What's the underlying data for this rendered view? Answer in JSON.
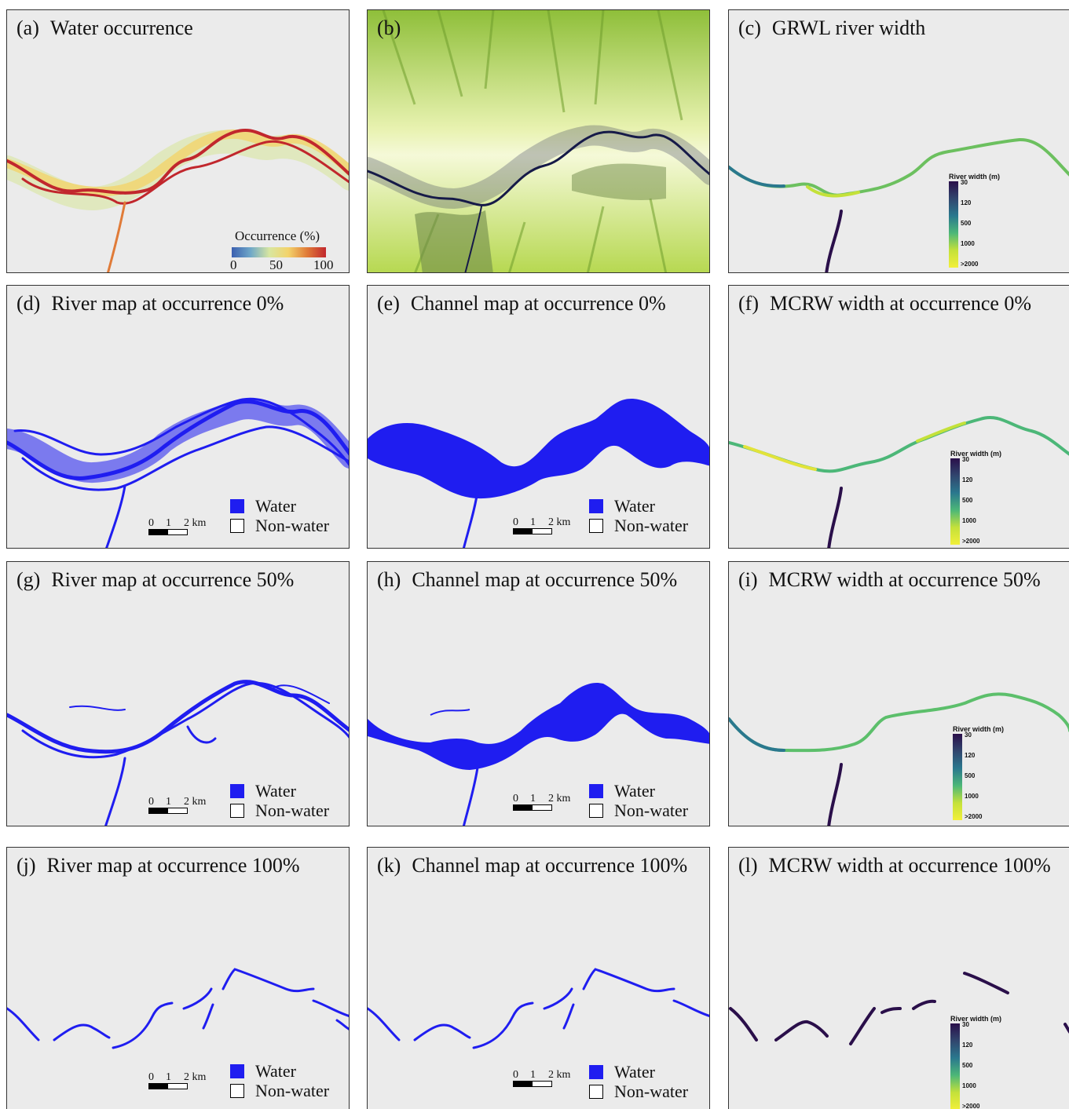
{
  "colors": {
    "panel_bg": "#ebebeb",
    "water_blue": "#1f1df0",
    "occurrence_high": "#c1272d",
    "width_low": "#2a0f4a",
    "width_high": "#f2ef3a"
  },
  "legend": {
    "water": "Water",
    "non_water": "Non-water"
  },
  "scale_bar": {
    "t0": "0",
    "t1": "1",
    "t2": "2 km"
  },
  "width_legend": {
    "title": "River width (m)",
    "ticks": [
      "30",
      "120",
      "500",
      "1000",
      ">2000"
    ]
  },
  "occurrence_legend": {
    "title": "Occurrence (%)",
    "ticks": [
      "0",
      "50",
      "100"
    ]
  },
  "panels": {
    "a": {
      "label": "(a)",
      "title": "Water occurrence"
    },
    "b": {
      "label": "(b)",
      "title": ""
    },
    "c": {
      "label": "(c)",
      "title": "GRWL river width"
    },
    "d": {
      "label": "(d)",
      "title": "River map at occurrence 0%"
    },
    "e": {
      "label": "(e)",
      "title": "Channel map at occurrence 0%"
    },
    "f": {
      "label": "(f)",
      "title": "MCRW width at occurrence 0%"
    },
    "g": {
      "label": "(g)",
      "title": "River map at occurrence 50%"
    },
    "h": {
      "label": "(h)",
      "title": "Channel map at occurrence 50%"
    },
    "i": {
      "label": "(i)",
      "title": "MCRW width at occurrence 50%"
    },
    "j": {
      "label": "(j)",
      "title": "River map at occurrence 100%"
    },
    "k": {
      "label": "(k)",
      "title": "Channel map at occurrence 100%"
    },
    "l": {
      "label": "(l)",
      "title": "MCRW width at occurrence 100%"
    }
  }
}
